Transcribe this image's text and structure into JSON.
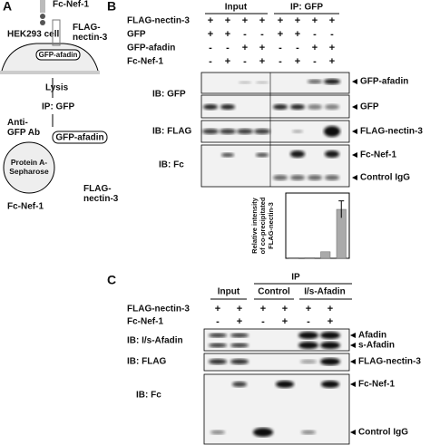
{
  "panel_a": {
    "letter": "A",
    "fc_nef1": "Fc-Nef-1",
    "cell": "HEK293 cell",
    "flag_nectin3": [
      "FLAG-",
      "nectin-3"
    ],
    "gfp_afadin": "GFP-afadin",
    "lysis": "Lysis",
    "ip": "IP: GFP",
    "anti_gfp": [
      "Anti-",
      "GFP Ab"
    ],
    "gfp_afadin_2": "GFP-afadin",
    "beads": [
      "Protein A-",
      "Sepharose"
    ],
    "flag_nectin3_2": [
      "FLAG-",
      "nectin-3"
    ],
    "fc_nef1_2": "Fc-Nef-1"
  },
  "panel_b": {
    "letter": "B",
    "groups": [
      "Input",
      "IP: GFP"
    ],
    "rows": [
      {
        "label": "FLAG-nectin-3",
        "signs": [
          "+",
          "+",
          "+",
          "+",
          "+",
          "+",
          "+",
          "+"
        ]
      },
      {
        "label": "GFP",
        "signs": [
          "+",
          "+",
          "-",
          "-",
          "+",
          "+",
          "-",
          "-"
        ]
      },
      {
        "label": "GFP-afadin",
        "signs": [
          "-",
          "-",
          "+",
          "+",
          "-",
          "-",
          "+",
          "+"
        ]
      },
      {
        "label": "Fc-Nef-1",
        "signs": [
          "-",
          "+",
          "-",
          "+",
          "-",
          "+",
          "-",
          "+"
        ]
      }
    ],
    "blots": [
      "IB: GFP",
      "IB: FLAG",
      "IB: Fc"
    ],
    "bands": [
      "GFP-afadin",
      "GFP",
      "FLAG-nectin-3",
      "Fc-Nef-1",
      "Control IgG"
    ],
    "inset": {
      "type": "bar",
      "y_label": [
        "Relative intensity",
        "of co-precipitated",
        "FLAG-nectin-3"
      ],
      "values": [
        0.1,
        0.1,
        1,
        7.5
      ],
      "errors": [
        null,
        null,
        null,
        1.3
      ],
      "ylim": [
        0,
        10
      ],
      "color": "#aaaaaa"
    }
  },
  "panel_c": {
    "letter": "C",
    "ip": "IP",
    "groups": [
      "Input",
      "Control",
      "I/s-Afadin"
    ],
    "rows": [
      {
        "label": "FLAG-nectin-3",
        "signs": [
          "+",
          "+",
          "+",
          "+",
          "+",
          "+"
        ]
      },
      {
        "label": "Fc-Nef-1",
        "signs": [
          "-",
          "+",
          "-",
          "+",
          "-",
          "+"
        ]
      }
    ],
    "blots": [
      "IB: I/s-Afadin",
      "IB: FLAG",
      "IB: Fc"
    ],
    "bands": [
      "Afadin",
      "s-Afadin",
      "FLAG-nectin-3",
      "Fc-Nef-1",
      "Control IgG"
    ]
  }
}
